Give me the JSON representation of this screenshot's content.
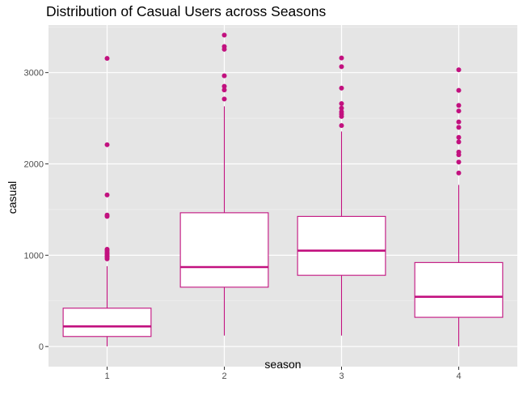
{
  "chart_data": {
    "type": "boxplot",
    "title": "Distribution of Casual Users across Seasons",
    "xlabel": "season",
    "ylabel": "casual",
    "categories": [
      "1",
      "2",
      "3",
      "4"
    ],
    "ylim": [
      -220,
      3520
    ],
    "yticks": [
      0,
      1000,
      2000,
      3000
    ],
    "grid": true,
    "color": "#c2117f",
    "panel_background": "#e5e5e5",
    "boxes": [
      {
        "category": "1",
        "whisker_low": 2,
        "q1": 110,
        "median": 220,
        "q3": 420,
        "whisker_high": 880,
        "outliers": [
          3155,
          2210,
          1660,
          1440,
          1425,
          1065,
          1050,
          1030,
          1015,
          1000,
          990,
          980,
          960
        ]
      },
      {
        "category": "2",
        "whisker_low": 120,
        "q1": 650,
        "median": 870,
        "q3": 1465,
        "whisker_high": 2630,
        "outliers": [
          3410,
          3285,
          3255,
          2965,
          2850,
          2810,
          2710
        ]
      },
      {
        "category": "3",
        "whisker_low": 120,
        "q1": 780,
        "median": 1050,
        "q3": 1425,
        "whisker_high": 2355,
        "outliers": [
          3160,
          3065,
          2830,
          2660,
          2610,
          2570,
          2545,
          2520,
          2420
        ]
      },
      {
        "category": "4",
        "whisker_low": 2,
        "q1": 320,
        "median": 545,
        "q3": 920,
        "whisker_high": 1770,
        "outliers": [
          3030,
          2805,
          2640,
          2580,
          2460,
          2400,
          2290,
          2240,
          2130,
          2100,
          2020,
          1900
        ]
      }
    ]
  }
}
